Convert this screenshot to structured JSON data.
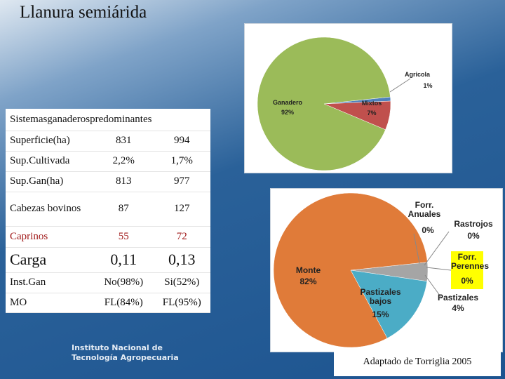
{
  "title": "Llanura semiárida",
  "table": {
    "header": "Sistemasganaderospredominantes",
    "rows": [
      [
        "Superficie(ha)",
        "831",
        "994"
      ],
      [
        "Sup.Cultivada",
        "2,2%",
        "1,7%"
      ],
      [
        "Sup.Gan(ha)",
        "813",
        "977"
      ],
      [
        "Cabezas bovinos",
        "87",
        "127"
      ],
      [
        "Caprinos",
        "55",
        "72"
      ],
      [
        "Carga",
        "0,11",
        "0,13"
      ],
      [
        "Inst.Gan",
        "No(98%)",
        "Si(52%)"
      ],
      [
        "MO",
        "FL(84%)",
        "FL(95%)"
      ]
    ]
  },
  "charts": [
    {
      "type": "pie",
      "categories": [
        "Agricola",
        "Mixtos",
        "Ganadero"
      ],
      "values": [
        1,
        7,
        92
      ],
      "value_labels": [
        "1%",
        "7%",
        "92%"
      ],
      "colors": [
        "#4f81bd",
        "#c0504d",
        "#9bbb59"
      ]
    },
    {
      "type": "pie",
      "categories": [
        "Forr. Anuales",
        "Rastrojos",
        "Forr. Perennes",
        "Pastizales",
        "Pastizales bajos",
        "Monte"
      ],
      "values": [
        0,
        0,
        0,
        4,
        15,
        82
      ],
      "value_labels": [
        "0%",
        "0%",
        "0%",
        "4%",
        "15%",
        "82%"
      ],
      "colors": [
        "#f79646",
        "#9bbb59",
        "#ffff00",
        "#a5a5a5",
        "#4bacc6",
        "#e07b39"
      ]
    }
  ],
  "logo": [
    "Instituto Nacional de",
    "Tecnología Agropecuaria"
  ],
  "source": "Adaptado de Torriglia 2005"
}
